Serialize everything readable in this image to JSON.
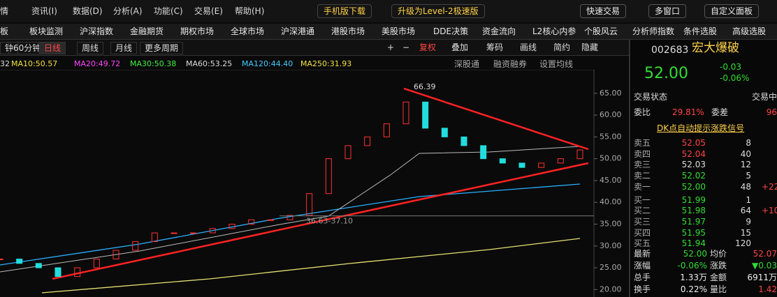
{
  "menu": [
    "情",
    "资讯(I)",
    "数据(D)",
    "分析(A)",
    "功能(C)",
    "交易(E)",
    "帮助(H)"
  ],
  "top_buttons": [
    "手机版下载",
    "升级为Level-2极速版"
  ],
  "right_buttons": [
    "快速交易",
    "多窗口",
    "自定义面板"
  ],
  "nav": [
    "板",
    "板块监测",
    "沪深指数",
    "金融期货",
    "期权市场",
    "全球市场",
    "沪深港通",
    "港股市场",
    "美股市场",
    "DDE决策",
    "资金流向",
    "L2核心内参",
    "个股风云",
    "分析师指数",
    "条件选股",
    "高级选股"
  ],
  "periods": [
    "钟",
    "60分钟",
    "日线",
    "周线",
    "月线",
    "更多周期"
  ],
  "tools": [
    "+",
    "−",
    "复权",
    "叠加",
    "筹码",
    "画线",
    "简约",
    "隐藏"
  ],
  "ma_labels": [
    {
      "text": "32",
      "color": "#dddddd"
    },
    {
      "text": "MA10:50.57",
      "color": "#f0e040"
    },
    {
      "text": "MA20:49.72",
      "color": "#ff44ff"
    },
    {
      "text": "MA30:50.38",
      "color": "#44ee44"
    },
    {
      "text": "MA60:53.25",
      "color": "#dddddd"
    },
    {
      "text": "MA120:44.40",
      "color": "#44ccff"
    },
    {
      "text": "MA250:31.93",
      "color": "#f0e040"
    }
  ],
  "chart_tabs": [
    "深股通",
    "融资融券",
    "设置均线"
  ],
  "chart_data": {
    "type": "candlestick",
    "ylim": [
      18.3,
      70.4
    ],
    "yticks": [
      {
        "value": 65,
        "label": "65.00"
      },
      {
        "value": 60,
        "label": "60.00"
      },
      {
        "value": 55,
        "label": "55.00"
      },
      {
        "value": 50,
        "label": "50.00"
      },
      {
        "value": 45,
        "label": "45.00"
      },
      {
        "value": 40,
        "label": "40.00"
      },
      {
        "value": 35,
        "label": "35.00"
      },
      {
        "value": 30,
        "label": "30.00"
      },
      {
        "value": 25,
        "label": "25.00"
      },
      {
        "value": 20,
        "label": "20.00"
      }
    ],
    "values": [
      27,
      26,
      25,
      23,
      25,
      27,
      29,
      31,
      33,
      33,
      33,
      34,
      35,
      36,
      36,
      37,
      42,
      50,
      53,
      55,
      58,
      63,
      57,
      55,
      53,
      50,
      49,
      48,
      49,
      50,
      52
    ],
    "up_color": "#ff3333",
    "down_color": "#22dddd",
    "annotations": [
      {
        "text": "66.39",
        "value": 66.39
      },
      {
        "text": "36.63-37.10",
        "value": 36.9
      }
    ]
  },
  "quote": {
    "code": "002683",
    "name": "宏大爆破",
    "price": "52.00",
    "change": "-0.03",
    "change_pct": "-0.06%",
    "status_label": "交易状态",
    "status": "交易中",
    "ratio_label": "委比",
    "ratio": "29.81%",
    "diff_label": "委差",
    "diff": "96",
    "signal": "DK点自动提示涨跌信号",
    "book": [
      {
        "label": "卖五",
        "price": "52.05",
        "vol": "8",
        "chg": "",
        "color": "#ff4444"
      },
      {
        "label": "卖四",
        "price": "52.04",
        "vol": "40",
        "chg": "",
        "color": "#ff4444"
      },
      {
        "label": "卖三",
        "price": "52.03",
        "vol": "12",
        "chg": "",
        "color": "#dddddd"
      },
      {
        "label": "卖二",
        "price": "52.02",
        "vol": "5",
        "chg": "",
        "color": "#33dd33"
      },
      {
        "label": "卖一",
        "price": "52.00",
        "vol": "48",
        "chg": "+22",
        "color": "#33dd33"
      },
      {
        "label": "买一",
        "price": "51.99",
        "vol": "1",
        "chg": "",
        "color": "#33dd33"
      },
      {
        "label": "买二",
        "price": "51.98",
        "vol": "64",
        "chg": "+10",
        "color": "#33dd33"
      },
      {
        "label": "买三",
        "price": "51.97",
        "vol": "9",
        "chg": "",
        "color": "#33dd33"
      },
      {
        "label": "买四",
        "price": "51.95",
        "vol": "15",
        "chg": "",
        "color": "#33dd33"
      },
      {
        "label": "买五",
        "price": "51.94",
        "vol": "120",
        "chg": "",
        "color": "#33dd33"
      }
    ],
    "stats": [
      {
        "l1": "最新",
        "v1": "52.00",
        "c1": "#33dd33",
        "l2": "均价",
        "v2": "52.07",
        "c2": "#ff4444"
      },
      {
        "l1": "涨幅",
        "v1": "-0.06%",
        "c1": "#33dd33",
        "l2": "涨跌",
        "v2": "▼0.03",
        "c2": "#33dd33"
      },
      {
        "l1": "总手",
        "v1": "1.33万",
        "c1": "#eeeeee",
        "l2": "金额",
        "v2": "6911万",
        "c2": "#eeeeee"
      },
      {
        "l1": "换手",
        "v1": "0.22%",
        "c1": "#eeeeee",
        "l2": "量比",
        "v2": "1.42",
        "c2": "#ff4444"
      }
    ]
  }
}
